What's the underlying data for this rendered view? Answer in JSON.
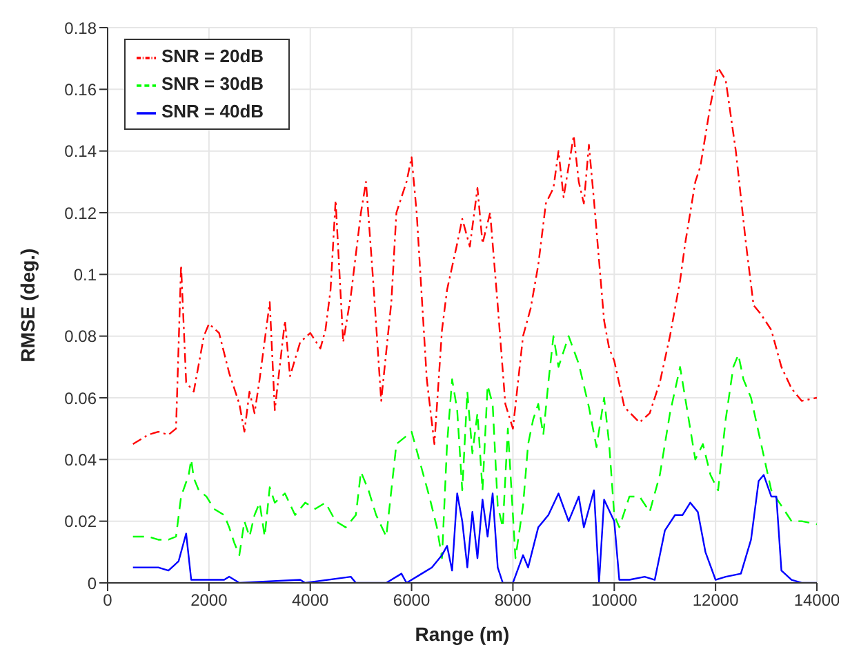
{
  "chart_data": {
    "type": "line",
    "xlabel": "Range (m)",
    "ylabel": "RMSE (deg.)",
    "xlim": [
      0,
      14000
    ],
    "xticks": [
      0,
      2000,
      4000,
      6000,
      8000,
      10000,
      12000,
      14000
    ],
    "ylim": [
      0,
      0.18
    ],
    "yticks": [
      0,
      0.02,
      0.04,
      0.06,
      0.08,
      0.1,
      0.12,
      0.14,
      0.16,
      0.18
    ],
    "grid": true,
    "legend": "top left",
    "marker": "none",
    "series": [
      {
        "name": "SNR = 20dB",
        "color": "#ff0000",
        "line_style": "dotted",
        "x": [
          500,
          800,
          1000,
          1200,
          1350,
          1450,
          1550,
          1700,
          1900,
          2000,
          2200,
          2400,
          2600,
          2700,
          2800,
          2900,
          3000,
          3200,
          3300,
          3500,
          3600,
          3800,
          4000,
          4200,
          4300,
          4400,
          4500,
          4650,
          4800,
          5000,
          5100,
          5250,
          5400,
          5600,
          5700,
          5900,
          6000,
          6100,
          6300,
          6450,
          6600,
          6700,
          6900,
          7000,
          7150,
          7300,
          7400,
          7550,
          7700,
          7850,
          8000,
          8200,
          8350,
          8500,
          8650,
          8800,
          8900,
          9000,
          9100,
          9200,
          9300,
          9400,
          9500,
          9600,
          9800,
          9900,
          10000,
          10200,
          10500,
          10700,
          10900,
          11100,
          11300,
          11400,
          11600,
          11700,
          11900,
          12050,
          12200,
          12400,
          12600,
          12750,
          12900,
          13100,
          13300,
          13500,
          13700,
          14000
        ],
        "values": [
          0.045,
          0.048,
          0.049,
          0.048,
          0.05,
          0.103,
          0.065,
          0.062,
          0.08,
          0.084,
          0.081,
          0.068,
          0.058,
          0.049,
          0.062,
          0.055,
          0.066,
          0.091,
          0.056,
          0.085,
          0.067,
          0.078,
          0.081,
          0.076,
          0.082,
          0.095,
          0.124,
          0.078,
          0.093,
          0.12,
          0.13,
          0.096,
          0.059,
          0.091,
          0.12,
          0.13,
          0.138,
          0.12,
          0.066,
          0.045,
          0.082,
          0.095,
          0.11,
          0.118,
          0.109,
          0.128,
          0.11,
          0.12,
          0.09,
          0.058,
          0.05,
          0.08,
          0.089,
          0.103,
          0.123,
          0.128,
          0.14,
          0.125,
          0.135,
          0.145,
          0.13,
          0.123,
          0.142,
          0.124,
          0.085,
          0.076,
          0.072,
          0.057,
          0.052,
          0.055,
          0.065,
          0.08,
          0.098,
          0.11,
          0.13,
          0.135,
          0.155,
          0.167,
          0.163,
          0.14,
          0.11,
          0.09,
          0.087,
          0.082,
          0.07,
          0.063,
          0.059,
          0.06
        ]
      },
      {
        "name": "SNR = 30dB",
        "color": "#00ff00",
        "line_style": "dashed",
        "x": [
          500,
          800,
          1000,
          1200,
          1350,
          1450,
          1600,
          1650,
          1700,
          1800,
          1950,
          2100,
          2300,
          2400,
          2500,
          2600,
          2700,
          2800,
          2900,
          3000,
          3100,
          3200,
          3300,
          3500,
          3700,
          3900,
          4100,
          4300,
          4500,
          4700,
          4900,
          5000,
          5150,
          5300,
          5500,
          5700,
          5850,
          6000,
          6200,
          6350,
          6500,
          6600,
          6700,
          6800,
          6900,
          7000,
          7100,
          7200,
          7300,
          7400,
          7500,
          7600,
          7700,
          7800,
          7900,
          8050,
          8200,
          8300,
          8400,
          8500,
          8600,
          8700,
          8800,
          8900,
          9100,
          9300,
          9500,
          9650,
          9800,
          9900,
          10000,
          10100,
          10300,
          10500,
          10700,
          10900,
          11100,
          11300,
          11450,
          11600,
          11750,
          11900,
          12050,
          12200,
          12350,
          12450,
          12550,
          12700,
          12900,
          13100,
          13300,
          13500,
          13700,
          14000
        ],
        "values": [
          0.015,
          0.015,
          0.014,
          0.014,
          0.015,
          0.028,
          0.035,
          0.04,
          0.034,
          0.03,
          0.028,
          0.024,
          0.022,
          0.018,
          0.013,
          0.009,
          0.02,
          0.015,
          0.022,
          0.026,
          0.015,
          0.031,
          0.026,
          0.029,
          0.022,
          0.026,
          0.024,
          0.026,
          0.02,
          0.018,
          0.022,
          0.036,
          0.03,
          0.022,
          0.015,
          0.045,
          0.047,
          0.049,
          0.037,
          0.028,
          0.018,
          0.008,
          0.045,
          0.066,
          0.056,
          0.03,
          0.062,
          0.042,
          0.055,
          0.03,
          0.064,
          0.058,
          0.025,
          0.018,
          0.05,
          0.008,
          0.025,
          0.045,
          0.053,
          0.058,
          0.048,
          0.065,
          0.08,
          0.07,
          0.08,
          0.071,
          0.057,
          0.044,
          0.06,
          0.045,
          0.022,
          0.018,
          0.028,
          0.028,
          0.023,
          0.035,
          0.055,
          0.07,
          0.055,
          0.04,
          0.045,
          0.035,
          0.03,
          0.053,
          0.07,
          0.074,
          0.066,
          0.06,
          0.045,
          0.03,
          0.025,
          0.02,
          0.02,
          0.019
        ]
      },
      {
        "name": "SNR = 40dB",
        "color": "#0000ff",
        "line_style": "solid",
        "x": [
          500,
          800,
          1000,
          1200,
          1400,
          1550,
          1650,
          1900,
          2100,
          2300,
          2400,
          2600,
          3800,
          3900,
          4800,
          4900,
          5500,
          5800,
          5900,
          6200,
          6400,
          6600,
          6700,
          6800,
          6900,
          7000,
          7100,
          7200,
          7300,
          7400,
          7500,
          7600,
          7700,
          7800,
          8000,
          8200,
          8300,
          8500,
          8700,
          8900,
          9100,
          9300,
          9400,
          9600,
          9700,
          9800,
          10000,
          10100,
          10300,
          10600,
          10800,
          11000,
          11200,
          11350,
          11500,
          11650,
          11800,
          12000,
          12200,
          12500,
          12700,
          12850,
          12950,
          13100,
          13200,
          13300,
          13500,
          13700,
          14000
        ],
        "values": [
          0.005,
          0.005,
          0.005,
          0.004,
          0.007,
          0.016,
          0.001,
          0.001,
          0.001,
          0.001,
          0.002,
          0,
          0.001,
          0,
          0.002,
          0,
          0,
          0.003,
          0,
          0.003,
          0.005,
          0.009,
          0.012,
          0.004,
          0.029,
          0.02,
          0.005,
          0.023,
          0.008,
          0.027,
          0.015,
          0.029,
          0.005,
          0,
          0,
          0.009,
          0.005,
          0.018,
          0.022,
          0.029,
          0.02,
          0.028,
          0.018,
          0.03,
          0,
          0.027,
          0.02,
          0.001,
          0.001,
          0.002,
          0.001,
          0.017,
          0.022,
          0.022,
          0.026,
          0.023,
          0.01,
          0.001,
          0.002,
          0.003,
          0.014,
          0.033,
          0.035,
          0.028,
          0.028,
          0.004,
          0.001,
          0,
          0
        ]
      }
    ]
  }
}
